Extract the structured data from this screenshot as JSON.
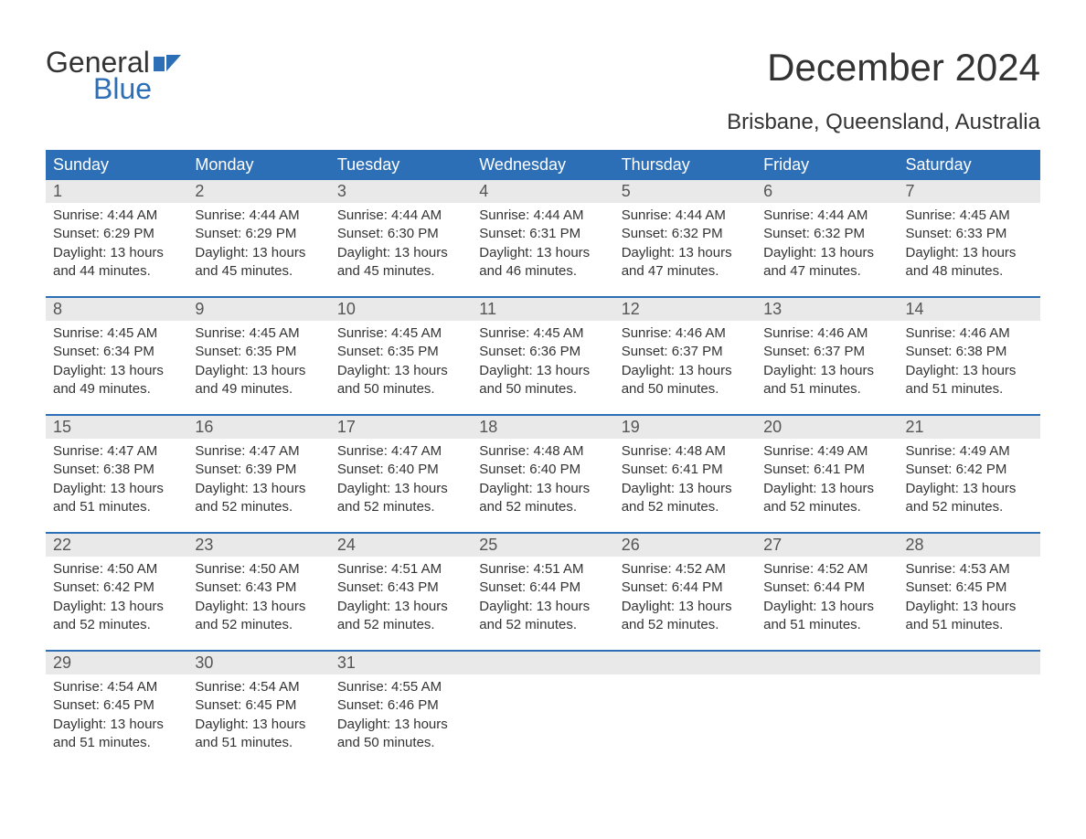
{
  "logo": {
    "text1": "General",
    "text2": "Blue",
    "accent_color": "#2d6fb6"
  },
  "title": "December 2024",
  "subtitle": "Brisbane, Queensland, Australia",
  "colors": {
    "header_bg": "#2d6fb6",
    "header_text": "#ffffff",
    "daynum_bg": "#e9e9e9",
    "body_text": "#333333",
    "week_divider": "#2d6fb6",
    "page_bg": "#ffffff"
  },
  "typography": {
    "title_fontsize": 42,
    "subtitle_fontsize": 24,
    "dayheader_fontsize": 18,
    "daynum_fontsize": 18,
    "body_fontsize": 15,
    "font_family": "Arial"
  },
  "day_headers": [
    "Sunday",
    "Monday",
    "Tuesday",
    "Wednesday",
    "Thursday",
    "Friday",
    "Saturday"
  ],
  "weeks": [
    [
      {
        "num": "1",
        "sunrise": "4:44 AM",
        "sunset": "6:29 PM",
        "daylight": "13 hours and 44 minutes."
      },
      {
        "num": "2",
        "sunrise": "4:44 AM",
        "sunset": "6:29 PM",
        "daylight": "13 hours and 45 minutes."
      },
      {
        "num": "3",
        "sunrise": "4:44 AM",
        "sunset": "6:30 PM",
        "daylight": "13 hours and 45 minutes."
      },
      {
        "num": "4",
        "sunrise": "4:44 AM",
        "sunset": "6:31 PM",
        "daylight": "13 hours and 46 minutes."
      },
      {
        "num": "5",
        "sunrise": "4:44 AM",
        "sunset": "6:32 PM",
        "daylight": "13 hours and 47 minutes."
      },
      {
        "num": "6",
        "sunrise": "4:44 AM",
        "sunset": "6:32 PM",
        "daylight": "13 hours and 47 minutes."
      },
      {
        "num": "7",
        "sunrise": "4:45 AM",
        "sunset": "6:33 PM",
        "daylight": "13 hours and 48 minutes."
      }
    ],
    [
      {
        "num": "8",
        "sunrise": "4:45 AM",
        "sunset": "6:34 PM",
        "daylight": "13 hours and 49 minutes."
      },
      {
        "num": "9",
        "sunrise": "4:45 AM",
        "sunset": "6:35 PM",
        "daylight": "13 hours and 49 minutes."
      },
      {
        "num": "10",
        "sunrise": "4:45 AM",
        "sunset": "6:35 PM",
        "daylight": "13 hours and 50 minutes."
      },
      {
        "num": "11",
        "sunrise": "4:45 AM",
        "sunset": "6:36 PM",
        "daylight": "13 hours and 50 minutes."
      },
      {
        "num": "12",
        "sunrise": "4:46 AM",
        "sunset": "6:37 PM",
        "daylight": "13 hours and 50 minutes."
      },
      {
        "num": "13",
        "sunrise": "4:46 AM",
        "sunset": "6:37 PM",
        "daylight": "13 hours and 51 minutes."
      },
      {
        "num": "14",
        "sunrise": "4:46 AM",
        "sunset": "6:38 PM",
        "daylight": "13 hours and 51 minutes."
      }
    ],
    [
      {
        "num": "15",
        "sunrise": "4:47 AM",
        "sunset": "6:38 PM",
        "daylight": "13 hours and 51 minutes."
      },
      {
        "num": "16",
        "sunrise": "4:47 AM",
        "sunset": "6:39 PM",
        "daylight": "13 hours and 52 minutes."
      },
      {
        "num": "17",
        "sunrise": "4:47 AM",
        "sunset": "6:40 PM",
        "daylight": "13 hours and 52 minutes."
      },
      {
        "num": "18",
        "sunrise": "4:48 AM",
        "sunset": "6:40 PM",
        "daylight": "13 hours and 52 minutes."
      },
      {
        "num": "19",
        "sunrise": "4:48 AM",
        "sunset": "6:41 PM",
        "daylight": "13 hours and 52 minutes."
      },
      {
        "num": "20",
        "sunrise": "4:49 AM",
        "sunset": "6:41 PM",
        "daylight": "13 hours and 52 minutes."
      },
      {
        "num": "21",
        "sunrise": "4:49 AM",
        "sunset": "6:42 PM",
        "daylight": "13 hours and 52 minutes."
      }
    ],
    [
      {
        "num": "22",
        "sunrise": "4:50 AM",
        "sunset": "6:42 PM",
        "daylight": "13 hours and 52 minutes."
      },
      {
        "num": "23",
        "sunrise": "4:50 AM",
        "sunset": "6:43 PM",
        "daylight": "13 hours and 52 minutes."
      },
      {
        "num": "24",
        "sunrise": "4:51 AM",
        "sunset": "6:43 PM",
        "daylight": "13 hours and 52 minutes."
      },
      {
        "num": "25",
        "sunrise": "4:51 AM",
        "sunset": "6:44 PM",
        "daylight": "13 hours and 52 minutes."
      },
      {
        "num": "26",
        "sunrise": "4:52 AM",
        "sunset": "6:44 PM",
        "daylight": "13 hours and 52 minutes."
      },
      {
        "num": "27",
        "sunrise": "4:52 AM",
        "sunset": "6:44 PM",
        "daylight": "13 hours and 51 minutes."
      },
      {
        "num": "28",
        "sunrise": "4:53 AM",
        "sunset": "6:45 PM",
        "daylight": "13 hours and 51 minutes."
      }
    ],
    [
      {
        "num": "29",
        "sunrise": "4:54 AM",
        "sunset": "6:45 PM",
        "daylight": "13 hours and 51 minutes."
      },
      {
        "num": "30",
        "sunrise": "4:54 AM",
        "sunset": "6:45 PM",
        "daylight": "13 hours and 51 minutes."
      },
      {
        "num": "31",
        "sunrise": "4:55 AM",
        "sunset": "6:46 PM",
        "daylight": "13 hours and 50 minutes."
      },
      null,
      null,
      null,
      null
    ]
  ],
  "labels": {
    "sunrise": "Sunrise: ",
    "sunset": "Sunset: ",
    "daylight": "Daylight: "
  }
}
